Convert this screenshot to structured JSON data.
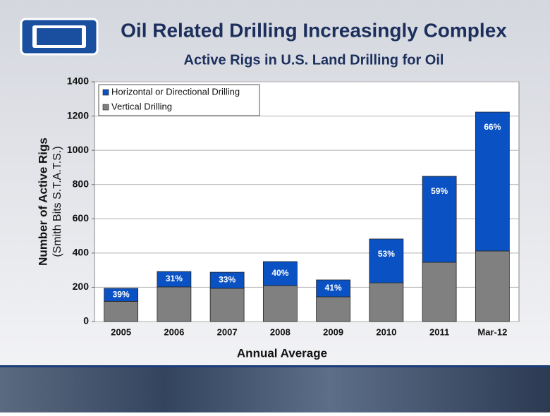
{
  "chart_data": {
    "type": "stacked-bar",
    "title": "Oil Related Drilling Increasingly Complex",
    "subtitle": "Active Rigs in U.S. Land Drilling for Oil",
    "y_label": "Number of Active Rigs",
    "y_label_note": "(Smith Bits S.T.A.T.S.)",
    "x_label": "Annual Average",
    "categories": [
      "2005",
      "2006",
      "2007",
      "2008",
      "2009",
      "2010",
      "2011",
      "Mar-12"
    ],
    "series": [
      {
        "name": "Vertical Drilling",
        "color": "#808080",
        "values": [
          118,
          202,
          194,
          210,
          144,
          226,
          346,
          412
        ]
      },
      {
        "name": "Horizontal or Directional Drilling",
        "color": "#0a52c4",
        "values": [
          76,
          90,
          94,
          140,
          99,
          256,
          502,
          811
        ],
        "shares": [
          {
            "value": 39,
            "label": "39%"
          },
          {
            "value": 31,
            "label": "31%"
          },
          {
            "value": 33,
            "label": "33%"
          },
          {
            "value": 40,
            "label": "40%"
          },
          {
            "value": 41,
            "label": "41%"
          },
          {
            "value": 53,
            "label": "53%"
          },
          {
            "value": 59,
            "label": "59%"
          },
          {
            "value": 66,
            "label": "66%"
          }
        ]
      }
    ],
    "ylim": [
      0,
      1400
    ],
    "yticks": [
      0,
      200,
      400,
      600,
      800,
      1000,
      1200,
      1400
    ],
    "grid": true,
    "legend": "top-left"
  }
}
